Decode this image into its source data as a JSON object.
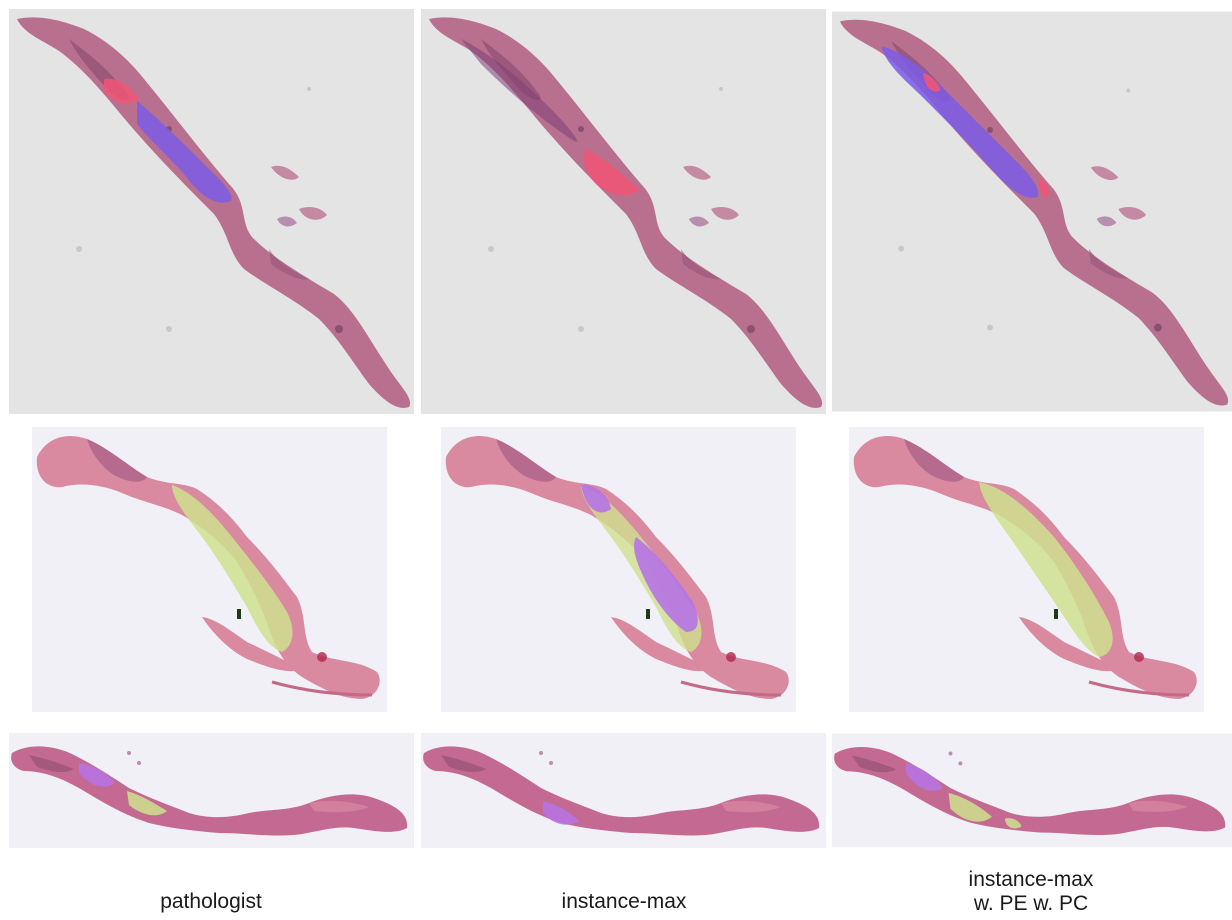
{
  "columns": [
    {
      "id": "pathologist",
      "caption_lines": [
        "pathologist"
      ]
    },
    {
      "id": "instance-max",
      "caption_lines": [
        "instance-max"
      ]
    },
    {
      "id": "instance-max-pe-pc",
      "caption_lines": [
        "instance-max",
        "w. PE w. PC"
      ]
    }
  ],
  "colors": {
    "slide_bg_row1": "#e4e4e4",
    "slide_bg_rows23": "#f0f0f6",
    "tissue": "#b9708f",
    "tissue_dark": "#8e4f72",
    "tissue_pink": "#d98aa1",
    "overlay_blue": "#7a5ce6",
    "overlay_red": "#f05577",
    "overlay_green": "#cfe08e",
    "overlay_purple": "#b673e6"
  },
  "overlays": {
    "row1": [
      {
        "column": "pathologist",
        "classes": [
          "overlay_red",
          "overlay_blue"
        ]
      },
      {
        "column": "instance-max",
        "classes": [
          "overlay_red"
        ]
      },
      {
        "column": "instance-max-pe-pc",
        "classes": [
          "overlay_blue",
          "overlay_red"
        ]
      }
    ],
    "row2": [
      {
        "column": "pathologist",
        "classes": [
          "overlay_green"
        ]
      },
      {
        "column": "instance-max",
        "classes": [
          "overlay_purple",
          "overlay_green"
        ]
      },
      {
        "column": "instance-max-pe-pc",
        "classes": [
          "overlay_green"
        ]
      }
    ],
    "row3": [
      {
        "column": "pathologist",
        "classes": [
          "overlay_purple",
          "overlay_green"
        ]
      },
      {
        "column": "instance-max",
        "classes": [
          "overlay_purple"
        ]
      },
      {
        "column": "instance-max-pe-pc",
        "classes": [
          "overlay_purple",
          "overlay_green"
        ]
      }
    ]
  }
}
